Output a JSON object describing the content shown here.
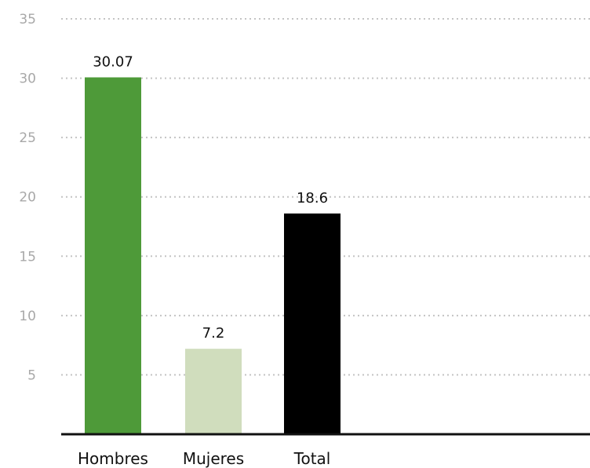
{
  "chart_data": {
    "type": "bar",
    "categories": [
      "Hombres",
      "Mujeres",
      "Total"
    ],
    "values": [
      30.07,
      7.2,
      18.6
    ],
    "value_labels": [
      "30.07",
      "7.2",
      "18.6"
    ],
    "colors": [
      "#4e9a39",
      "#d0ddbd",
      "#000000"
    ],
    "ylim": [
      0,
      35
    ],
    "yticks": [
      5,
      10,
      15,
      20,
      25,
      30,
      35
    ],
    "grid": true,
    "title": "",
    "xlabel": "",
    "ylabel": ""
  }
}
